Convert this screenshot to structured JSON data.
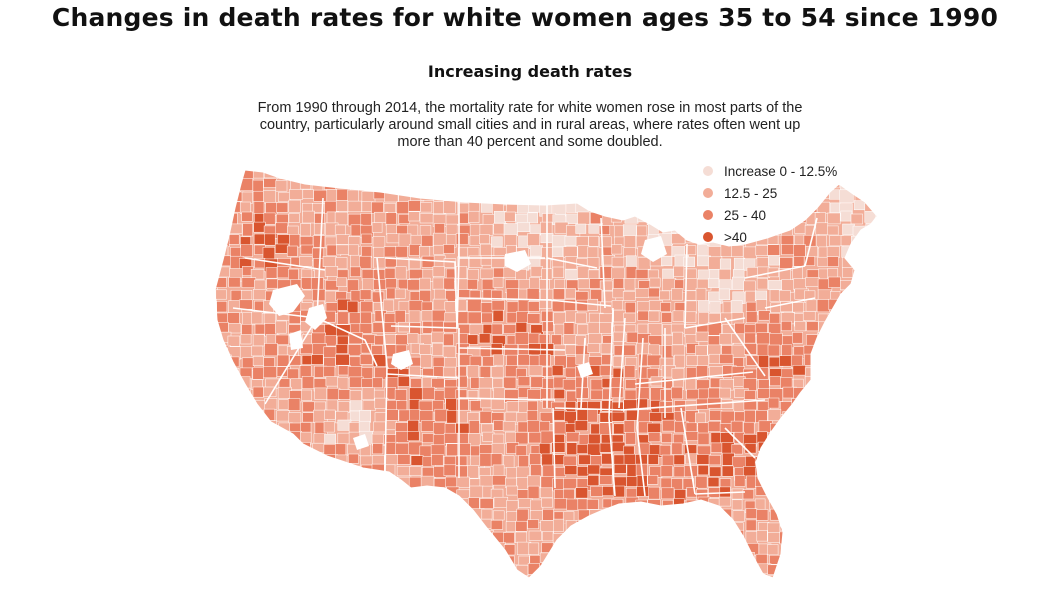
{
  "title": "Changes in death rates for white women ages 35 to 54 since 1990",
  "subtitle": "Increasing death rates",
  "description": "From 1990 through 2014, the mortality rate for white women rose in most parts of the country, particularly around small cities and in rural areas, where rates often went up more than 40 percent and some doubled.",
  "legend": {
    "items": [
      {
        "label": "Increase 0 - 12.5%",
        "color": "#f5ddd5"
      },
      {
        "label": "12.5 - 25",
        "color": "#f2ad98"
      },
      {
        "label": "25 - 40",
        "color": "#ea8266"
      },
      {
        "label": ">40",
        "color": "#d9552f"
      }
    ]
  },
  "colors": {
    "no_data": "#ffffff",
    "border": "#ffffff"
  }
}
